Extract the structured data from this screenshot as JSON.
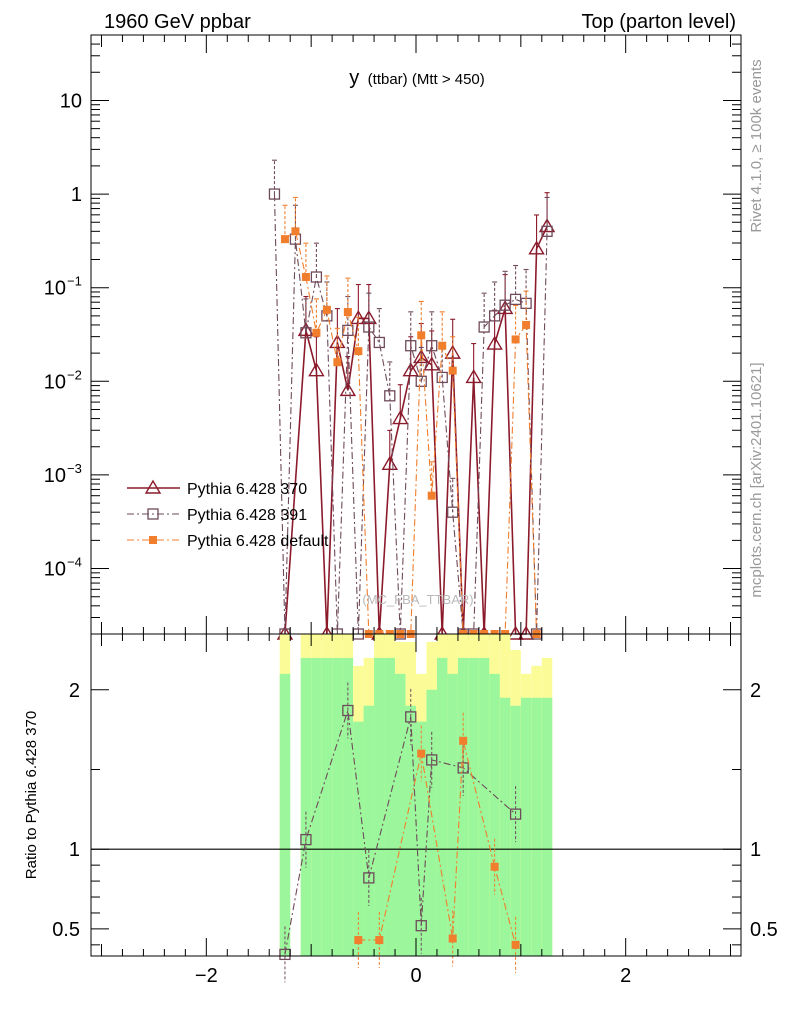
{
  "header": {
    "left": "1960 GeV ppbar",
    "right": "Top (parton level)"
  },
  "side": {
    "rivet": "Rivet 4.1.0, ≥ 100k events",
    "site": "mcplots.cern.ch [arXiv:2401.10621]"
  },
  "colors": {
    "s370": "#8b1a2b",
    "s391": "#6e4a5a",
    "sdef": "#f07e2c",
    "band_green": "#9cf79c",
    "band_yellow": "#fbfc98"
  },
  "chart_data": [
    {
      "type": "line",
      "title_main": "y",
      "title_sub": "(ttbar) (Mtt > 450)",
      "watermark": "(MC_FBA_TTBAR)",
      "yscale": "log",
      "xlim": [
        -3.1,
        3.1
      ],
      "ylim": [
        2e-05,
        50
      ],
      "yticks": [
        {
          "value": 10,
          "label": "10",
          "exp": ""
        },
        {
          "value": 1,
          "label": "1",
          "exp": ""
        },
        {
          "value": 0.1,
          "label": "10",
          "exp": "−1"
        },
        {
          "value": 0.01,
          "label": "10",
          "exp": "−2"
        },
        {
          "value": 0.001,
          "label": "10",
          "exp": "−3"
        },
        {
          "value": 0.0001,
          "label": "10",
          "exp": "−4"
        }
      ],
      "legend": [
        {
          "key": "s370",
          "label": "Pythia 6.428 370",
          "marker": "triangle",
          "dash": "solid"
        },
        {
          "key": "s391",
          "label": "Pythia 6.428 391",
          "marker": "square",
          "dash": "dashdot"
        },
        {
          "key": "sdef",
          "label": "Pythia 6.428 default",
          "marker": "filled-square",
          "dash": "dashdot"
        }
      ],
      "series": [
        {
          "key": "s370",
          "x": [
            -1.25,
            -1.05,
            -0.95,
            -0.85,
            -0.75,
            -0.65,
            -0.55,
            -0.45,
            -0.35,
            -0.25,
            -0.15,
            -0.05,
            0.05,
            0.15,
            0.25,
            0.35,
            0.45,
            0.55,
            0.65,
            0.75,
            0.85,
            0.95,
            1.05,
            1.15,
            1.25
          ],
          "y": [
            0,
            0.035,
            0.013,
            0,
            0.026,
            0.008,
            0.047,
            0.047,
            0,
            0.0013,
            0.004,
            0.013,
            0.018,
            0.015,
            0,
            0.02,
            0,
            0.011,
            0,
            0.025,
            0.06,
            0,
            0,
            0.26,
            0.45
          ]
        },
        {
          "key": "s391",
          "x": [
            -1.35,
            -1.25,
            -1.15,
            -1.05,
            -0.95,
            -0.85,
            -0.75,
            -0.65,
            -0.55,
            -0.45,
            -0.35,
            -0.25,
            -0.15,
            -0.05,
            0.05,
            0.15,
            0.25,
            0.35,
            0.45,
            0.55,
            0.65,
            0.75,
            0.85,
            0.95,
            1.05,
            1.15,
            1.25
          ],
          "y": [
            1.0,
            0,
            0.33,
            0.033,
            0.13,
            0.05,
            0,
            0.035,
            0,
            0.038,
            0.026,
            0.007,
            0,
            0.024,
            0.01,
            0.024,
            0.011,
            0.0004,
            0,
            0,
            0.038,
            0.05,
            0.065,
            0.075,
            0.068,
            0,
            0.4
          ]
        },
        {
          "key": "sdef",
          "x": [
            -1.25,
            -1.15,
            -1.05,
            -0.95,
            -0.85,
            -0.75,
            -0.65,
            -0.55,
            -0.45,
            -0.35,
            -0.25,
            -0.15,
            -0.05,
            0.05,
            0.15,
            0.25,
            0.35,
            0.45,
            0.55,
            0.65,
            0.75,
            0.85,
            0.95,
            1.05,
            1.15
          ],
          "y": [
            0.33,
            0.4,
            0.13,
            0.033,
            0.058,
            0.016,
            0.055,
            0.021,
            0,
            0,
            0,
            0,
            0,
            0.031,
            0.0006,
            0.024,
            0.013,
            0,
            0,
            0,
            0,
            0,
            0.028,
            0.04,
            0
          ]
        }
      ]
    },
    {
      "type": "line",
      "ylabel": "Ratio to Pythia 6.428 370",
      "xlim": [
        -3.1,
        3.1
      ],
      "ylim": [
        0.33,
        2.35
      ],
      "reference": 1,
      "yticks": [
        {
          "value": 2,
          "label": "2"
        },
        {
          "value": 1,
          "label": "1"
        },
        {
          "value": 0.5,
          "label": "0.5"
        }
      ],
      "xticks": [
        {
          "value": -2,
          "label": "−2"
        },
        {
          "value": 0,
          "label": "0"
        },
        {
          "value": 2,
          "label": "2"
        }
      ],
      "band": {
        "edges": [
          -1.3,
          -1.2,
          -1.1,
          -1.0,
          -0.9,
          -0.8,
          -0.7,
          -0.6,
          -0.5,
          -0.4,
          -0.3,
          -0.2,
          -0.1,
          0.0,
          0.1,
          0.2,
          0.3,
          0.4,
          0.5,
          0.6,
          0.7,
          0.8,
          0.9,
          1.0,
          1.1,
          1.2,
          1.3
        ],
        "green_hi": [
          2.1,
          0,
          2.2,
          2.2,
          2.2,
          2.2,
          2.2,
          1.8,
          1.9,
          2.2,
          2.2,
          2.1,
          1.9,
          1.8,
          2.0,
          2.2,
          2.1,
          2.2,
          2.2,
          2.2,
          2.1,
          1.95,
          1.9,
          1.95,
          1.95,
          1.95
        ],
        "yellow_hi": [
          2.35,
          0,
          2.35,
          2.35,
          2.35,
          2.35,
          2.35,
          2.15,
          2.2,
          2.35,
          2.35,
          2.3,
          2.3,
          2.1,
          2.3,
          2.35,
          2.35,
          2.35,
          2.35,
          2.35,
          2.35,
          2.35,
          2.25,
          2.1,
          2.15,
          2.2
        ]
      },
      "series": [
        {
          "key": "s391",
          "x": [
            -1.25,
            -1.05,
            -0.65,
            -0.45,
            -0.05,
            0.05,
            0.15,
            0.45,
            0.95
          ],
          "y": [
            0.34,
            1.06,
            1.87,
            0.82,
            1.83,
            0.52,
            1.56,
            1.51,
            1.22
          ]
        },
        {
          "key": "sdef",
          "x": [
            -0.55,
            -0.35,
            0.05,
            0.35,
            0.45,
            0.75,
            0.95
          ],
          "y": [
            0.43,
            0.43,
            1.6,
            0.44,
            1.68,
            0.89,
            0.4
          ]
        }
      ]
    }
  ]
}
